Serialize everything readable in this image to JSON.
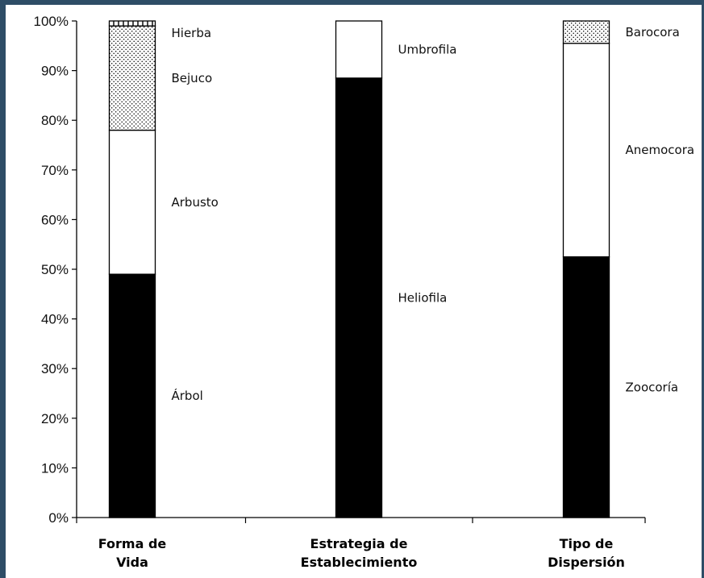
{
  "chart_data": {
    "type": "bar",
    "stacked": true,
    "categories": [
      [
        "Forma de",
        "Vida"
      ],
      [
        "Estrategia de",
        "Establecimiento"
      ],
      [
        "Tipo de",
        "Dispersión"
      ]
    ],
    "y_ticks": [
      "0%",
      "10%",
      "20%",
      "30%",
      "40%",
      "50%",
      "60%",
      "70%",
      "80%",
      "90%",
      "100%"
    ],
    "ylim": [
      0,
      100
    ],
    "grid": false,
    "legend": "none",
    "segments": [
      [
        {
          "label": "Árbol",
          "value": 49,
          "fill": "solid"
        },
        {
          "label": "Arbusto",
          "value": 29,
          "fill": "white"
        },
        {
          "label": "Bejuco",
          "value": 21,
          "fill": "dots"
        },
        {
          "label": "Hierba",
          "value": 1,
          "fill": "hatch"
        }
      ],
      [
        {
          "label": "Heliofila",
          "value": 88.5,
          "fill": "solid"
        },
        {
          "label": "Umbrofila",
          "value": 11.5,
          "fill": "white"
        }
      ],
      [
        {
          "label": "Zoocoría",
          "value": 52.5,
          "fill": "solid"
        },
        {
          "label": "Anemocora",
          "value": 43,
          "fill": "white"
        },
        {
          "label": "Barocora",
          "value": 4.5,
          "fill": "dots"
        }
      ]
    ],
    "colors": {
      "solid": "#000000",
      "white": "#ffffff",
      "outline": "#000000"
    }
  }
}
